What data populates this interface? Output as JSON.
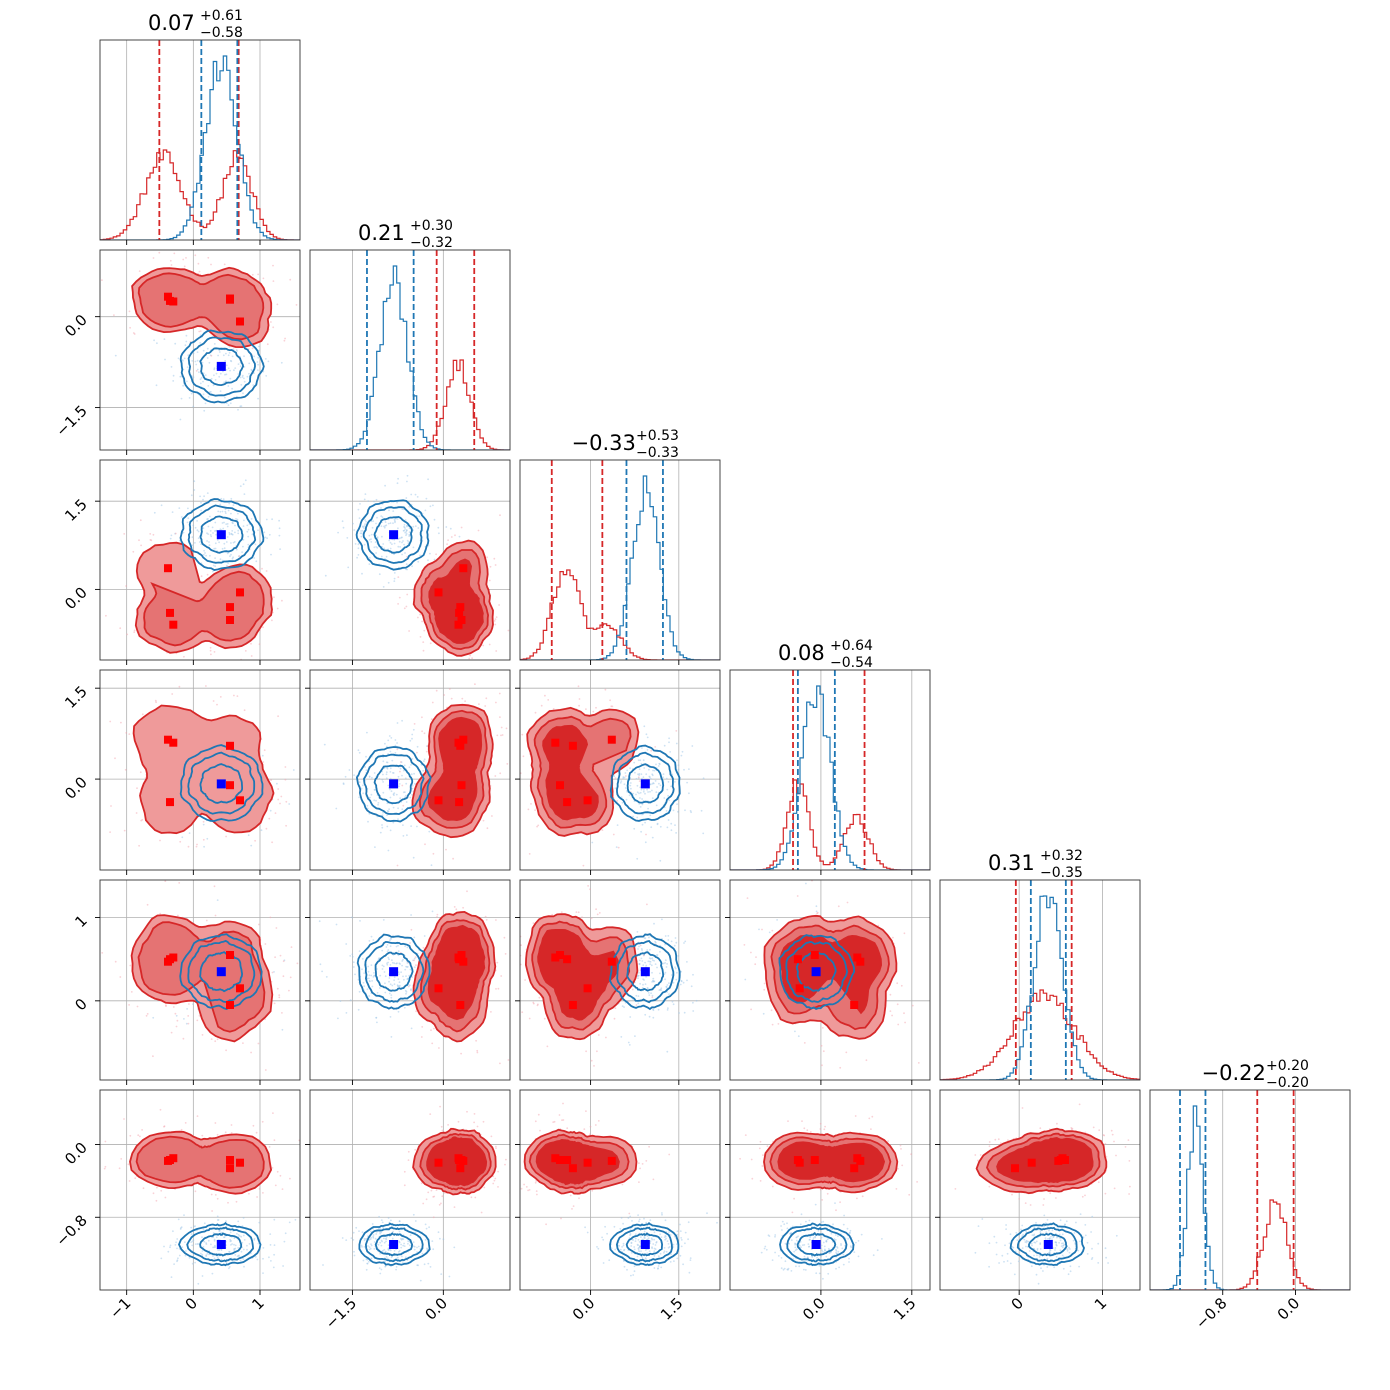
{
  "chart_data": {
    "type": "corner",
    "grid": true,
    "colors": {
      "red": "#d62728",
      "blue": "#1f77b4",
      "red_fill_outer": "#ef9a9a",
      "red_fill_inner": "#d62728",
      "blue_marker": "#0000ff",
      "red_marker": "#ff0000"
    },
    "parameters": [
      {
        "range": [
          -1.4,
          1.6
        ],
        "ticks": [
          -1,
          0,
          1
        ],
        "tick_labels": [
          "−1",
          "0",
          "1"
        ],
        "title": {
          "main": "0.07",
          "sup": "+0.61",
          "sub": "−0.58"
        },
        "red_quantiles": [
          -0.51,
          0.68
        ],
        "blue_quantiles": [
          0.12,
          0.66
        ]
      },
      {
        "range": [
          -2.2,
          1.1
        ],
        "ticks": [
          -1.5,
          0.0
        ],
        "tick_labels": [
          "−1.5",
          "0.0"
        ],
        "title": {
          "main": "0.21",
          "sup": "+0.30",
          "sub": "−0.32"
        },
        "red_quantiles": [
          -0.11,
          0.51
        ],
        "blue_quantiles": [
          -1.26,
          -0.49
        ]
      },
      {
        "range": [
          -1.2,
          2.2
        ],
        "ticks": [
          0.0,
          1.5
        ],
        "tick_labels": [
          "0.0",
          "1.5"
        ],
        "title": {
          "main": "−0.33",
          "sup": "+0.53",
          "sub": "−0.33"
        },
        "red_quantiles": [
          -0.66,
          0.2
        ],
        "blue_quantiles": [
          0.61,
          1.23
        ]
      },
      {
        "range": [
          -1.5,
          1.8
        ],
        "ticks": [
          0.0,
          1.5
        ],
        "tick_labels": [
          "0.0",
          "1.5"
        ],
        "title": {
          "main": "0.08",
          "sup": "+0.64",
          "sub": "−0.54"
        },
        "red_quantiles": [
          -0.46,
          0.72
        ],
        "blue_quantiles": [
          -0.38,
          0.23
        ]
      },
      {
        "range": [
          -0.95,
          1.45
        ],
        "ticks": [
          0,
          1
        ],
        "tick_labels": [
          "0",
          "1"
        ],
        "title": {
          "main": "0.31",
          "sup": "+0.32",
          "sub": "−0.35"
        },
        "red_quantiles": [
          -0.04,
          0.63
        ],
        "blue_quantiles": [
          0.14,
          0.56
        ]
      },
      {
        "range": [
          -1.6,
          0.6
        ],
        "ticks": [
          -0.8,
          0.0
        ],
        "tick_labels": [
          "−0.8",
          "0.0"
        ],
        "title": {
          "main": "−0.22",
          "sup": "+0.20",
          "sub": "−0.20"
        },
        "red_quantiles": [
          -0.42,
          -0.02
        ],
        "blue_quantiles": [
          -1.27,
          -0.99
        ]
      }
    ],
    "blue_mode": {
      "dims": [
        0.42,
        -0.82,
        0.93,
        -0.08,
        0.35,
        -1.1
      ],
      "sigma": [
        0.28,
        0.27,
        0.27,
        0.28,
        0.2,
        0.1
      ]
    },
    "red_modes": {
      "sigma": [
        0.24,
        0.22,
        0.24,
        0.27,
        0.22,
        0.13
      ],
      "centers": [
        [
          -0.38,
          0.33,
          0.36,
          0.65,
          0.47,
          -0.18
        ],
        [
          -0.3,
          0.25,
          -0.6,
          0.6,
          0.52,
          -0.15
        ],
        [
          0.55,
          0.28,
          -0.3,
          0.55,
          -0.05,
          -0.26
        ],
        [
          0.7,
          -0.08,
          -0.05,
          -0.35,
          0.15,
          -0.2
        ],
        [
          -0.35,
          0.26,
          -0.4,
          -0.38,
          0.5,
          -0.17
        ],
        [
          0.55,
          0.3,
          -0.52,
          -0.1,
          0.55,
          -0.17
        ]
      ]
    },
    "histograms_1d": {
      "red": [
        {
          "centers": [
            -0.45,
            0.66
          ],
          "sigmas": [
            0.28,
            0.22
          ],
          "weights": [
            1.0,
            1.0
          ]
        },
        {
          "centers": [
            0.24
          ],
          "sigmas": [
            0.2
          ],
          "weights": [
            1.0
          ]
        },
        {
          "centers": [
            -0.42,
            0.3
          ],
          "sigmas": [
            0.23,
            0.23
          ],
          "weights": [
            1.0,
            0.35
          ]
        },
        {
          "centers": [
            -0.38,
            0.58
          ],
          "sigmas": [
            0.18,
            0.2
          ],
          "weights": [
            1.0,
            0.65
          ]
        },
        {
          "centers": [
            0.3
          ],
          "sigmas": [
            0.37
          ],
          "weights": [
            1.0
          ]
        },
        {
          "centers": [
            -0.22
          ],
          "sigmas": [
            0.13
          ],
          "weights": [
            1.0
          ]
        }
      ]
    },
    "red_square_markers": [
      [
        -0.38,
        0.33,
        0.36,
        0.65,
        0.47,
        -0.18
      ],
      [
        -0.3,
        0.25,
        -0.6,
        0.6,
        0.52,
        -0.15
      ],
      [
        0.55,
        0.28,
        -0.3,
        0.55,
        -0.05,
        -0.26
      ],
      [
        0.7,
        -0.08,
        -0.05,
        -0.35,
        0.15,
        -0.2
      ],
      [
        -0.35,
        0.26,
        -0.4,
        -0.38,
        0.5,
        -0.17
      ],
      [
        0.55,
        0.3,
        -0.52,
        -0.1,
        0.55,
        -0.17
      ]
    ]
  }
}
